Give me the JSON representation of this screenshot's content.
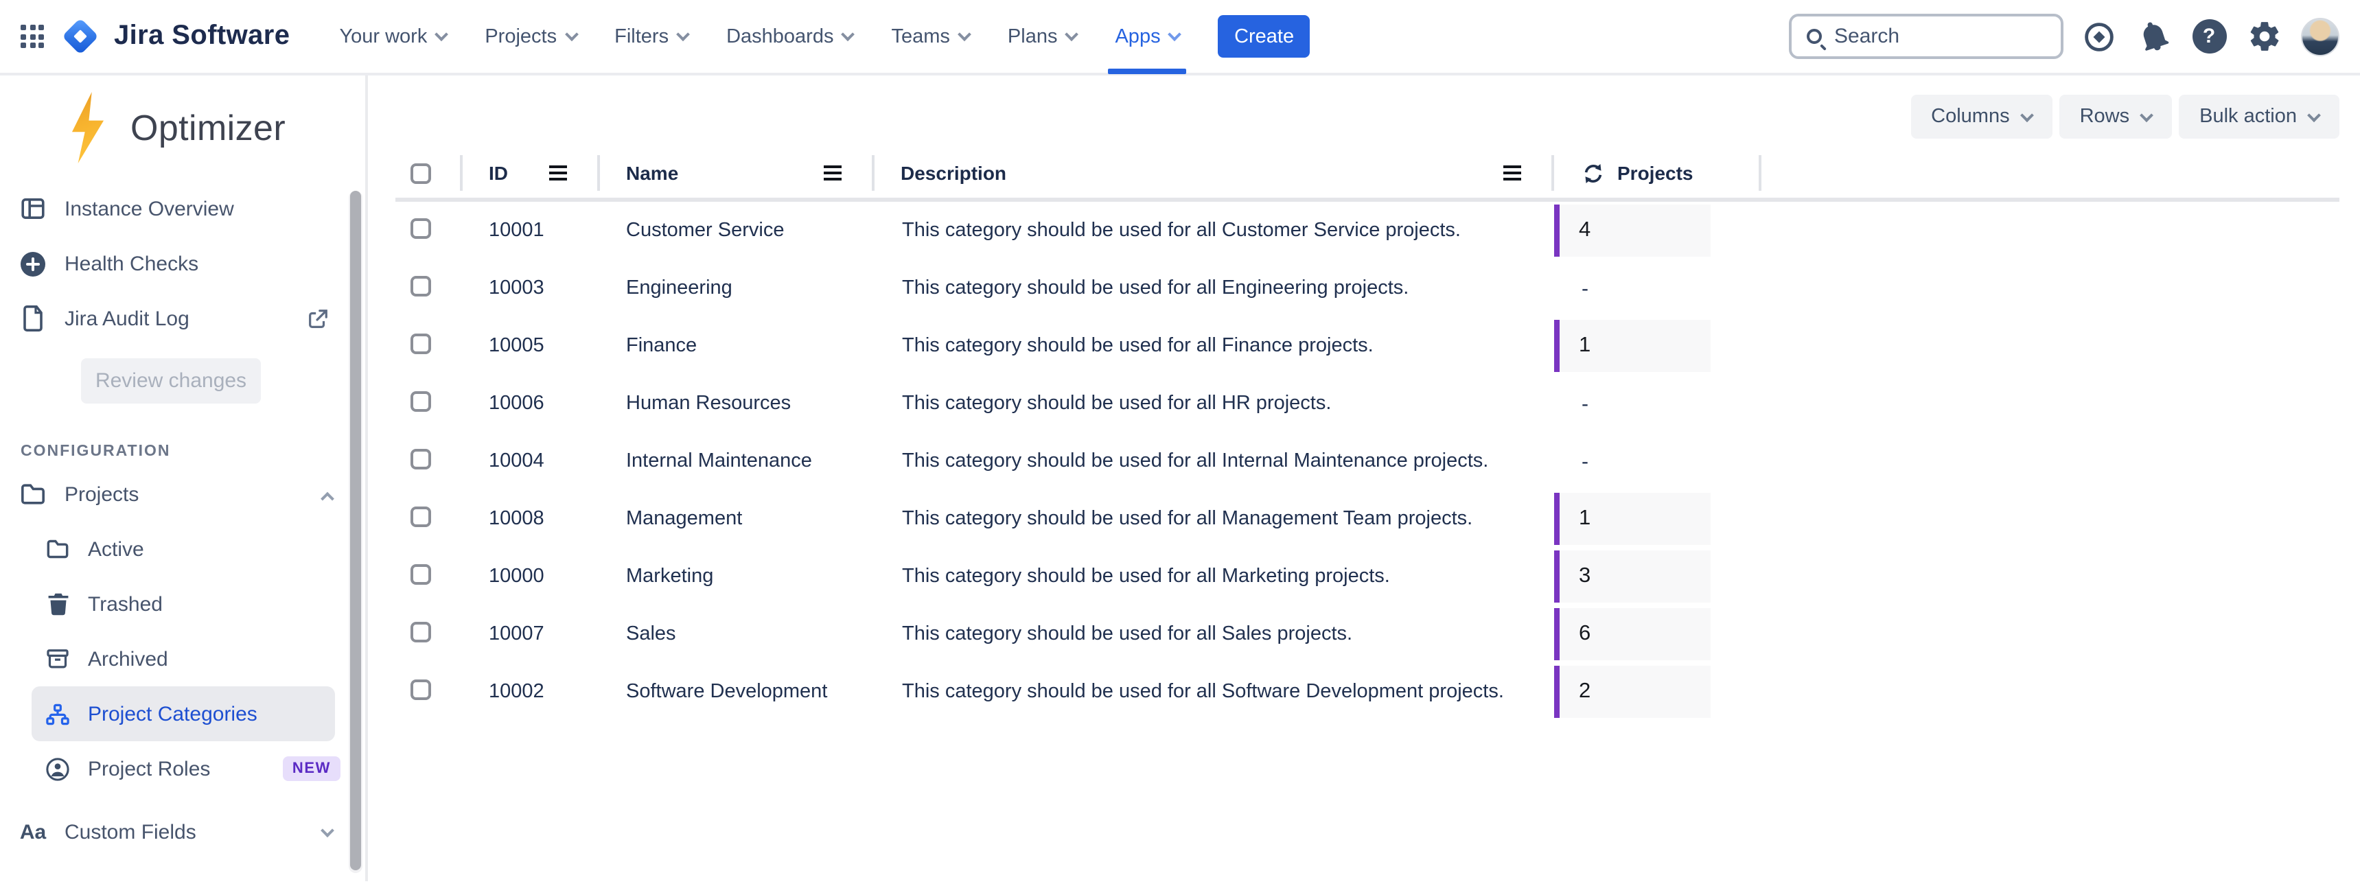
{
  "nav": {
    "logo_text": "Jira Software",
    "items": [
      {
        "label": "Your work"
      },
      {
        "label": "Projects"
      },
      {
        "label": "Filters"
      },
      {
        "label": "Dashboards"
      },
      {
        "label": "Teams"
      },
      {
        "label": "Plans"
      },
      {
        "label": "Apps",
        "active": true
      }
    ],
    "create_label": "Create",
    "search_placeholder": "Search"
  },
  "sidebar": {
    "app_name": "Optimizer",
    "instance_overview": "Instance Overview",
    "health_checks": "Health Checks",
    "jira_audit_log": "Jira Audit Log",
    "review_button": "Review changes",
    "section_label": "CONFIGURATION",
    "projects_label": "Projects",
    "active_label": "Active",
    "trashed_label": "Trashed",
    "archived_label": "Archived",
    "project_categories_label": "Project Categories",
    "project_roles_label": "Project Roles",
    "new_badge": "NEW",
    "custom_fields_label": "Custom Fields"
  },
  "toolbar": {
    "columns_label": "Columns",
    "rows_label": "Rows",
    "bulk_action_label": "Bulk action"
  },
  "table": {
    "headers": {
      "id": "ID",
      "name": "Name",
      "description": "Description",
      "projects": "Projects"
    },
    "rows": [
      {
        "id": "10001",
        "name": "Customer Service",
        "description": "This category should be used for all Customer Service projects.",
        "projects": "4"
      },
      {
        "id": "10003",
        "name": "Engineering",
        "description": "This category should be used for all Engineering projects.",
        "projects": "-"
      },
      {
        "id": "10005",
        "name": "Finance",
        "description": "This category should be used for all Finance projects.",
        "projects": "1"
      },
      {
        "id": "10006",
        "name": "Human Resources",
        "description": "This category should be used for all HR projects.",
        "projects": "-"
      },
      {
        "id": "10004",
        "name": "Internal Maintenance",
        "description": "This category should be used for all Internal Maintenance projects.",
        "projects": "-"
      },
      {
        "id": "10008",
        "name": "Management",
        "description": "This category should be used for all Management Team projects.",
        "projects": "1"
      },
      {
        "id": "10000",
        "name": "Marketing",
        "description": "This category should be used for all Marketing projects.",
        "projects": "3"
      },
      {
        "id": "10007",
        "name": "Sales",
        "description": "This category should be used for all Sales projects.",
        "projects": "6"
      },
      {
        "id": "10002",
        "name": "Software Development",
        "description": "This category should be used for all Software Development projects.",
        "projects": "2"
      }
    ]
  },
  "colors": {
    "accent_blue": "#2663E0",
    "selected_blue": "#1D4FD1",
    "projects_bar_purple": "#7A35C1",
    "badge_purple": "#5B2BC4",
    "bolt_yellow": "#F7B32E"
  }
}
